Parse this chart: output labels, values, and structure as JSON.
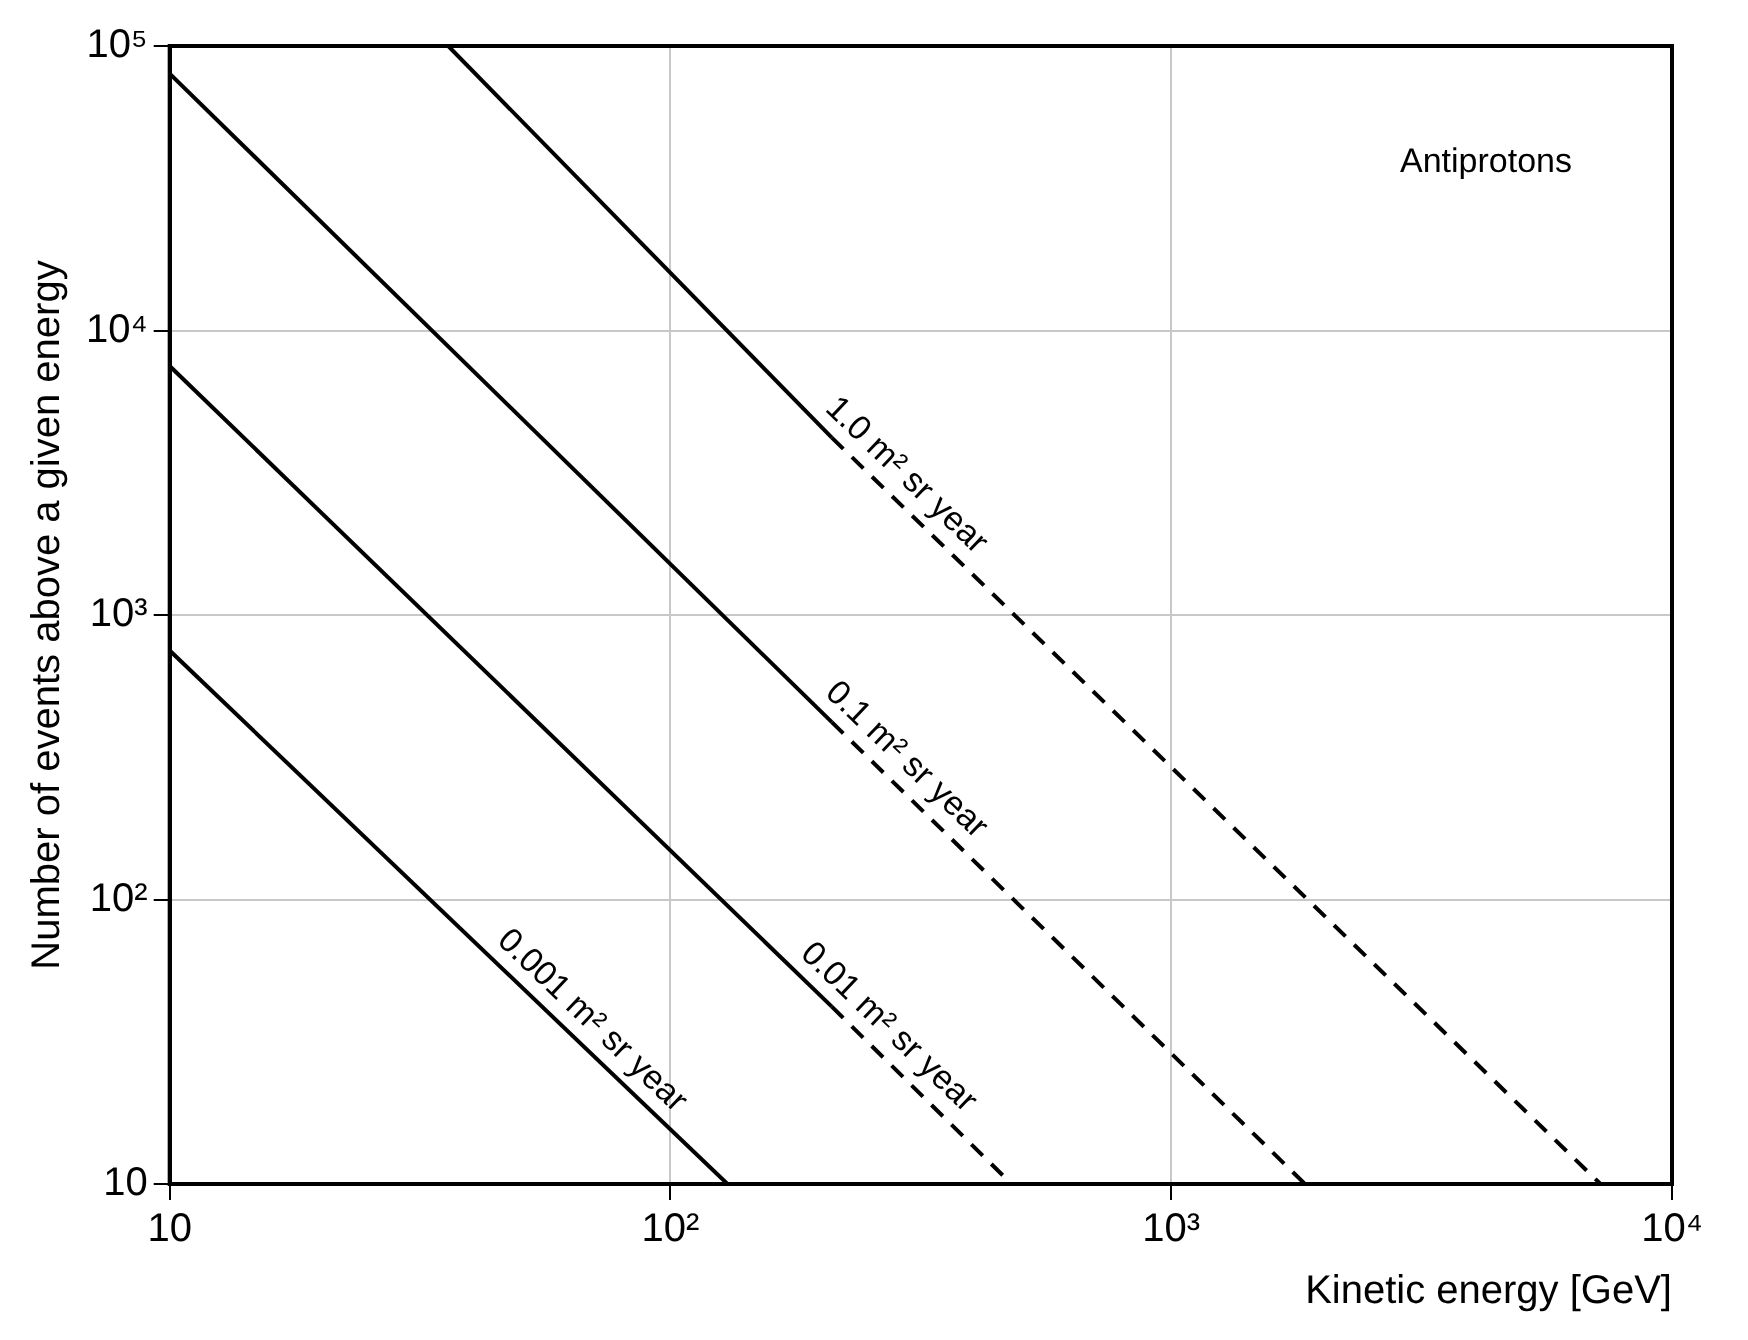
{
  "chart_data": {
    "type": "line",
    "xlabel": "Kinetic energy [GeV]",
    "ylabel": "Number of events above a given energy",
    "log": "xy",
    "grid": true,
    "legend": false,
    "marker": "none",
    "xlim": [
      10,
      10000
    ],
    "xticks": [
      10,
      {
        "value": 100,
        "label": "10²"
      },
      {
        "value": 1000,
        "label": "10³"
      },
      {
        "value": 10000,
        "label": "10⁴"
      }
    ],
    "ylim": [
      10,
      100000
    ],
    "yticks": [
      10,
      {
        "value": 100,
        "label": "10²"
      },
      {
        "value": 1000,
        "label": "10³"
      },
      {
        "value": 10000,
        "label": "10⁴"
      },
      {
        "value": 100000,
        "label": "10⁵"
      }
    ],
    "series": [
      {
        "color": "#000000",
        "line_style": "solid",
        "x": [
          10,
          130
        ],
        "values": [
          750,
          10
        ]
      },
      {
        "color": "#000000",
        "line_style": "solid",
        "x": [
          10,
          210
        ],
        "values": [
          7500,
          42
        ]
      },
      {
        "color": "#000000",
        "line_style": "solid",
        "x": [
          10,
          210
        ],
        "values": [
          80000,
          420
        ]
      },
      {
        "color": "#000000",
        "line_style": "solid",
        "x": [
          36,
          210
        ],
        "values": [
          100000,
          4200
        ]
      },
      {
        "color": "#000000",
        "line_style": "dashed",
        "x": [
          210,
          480
        ],
        "values": [
          42,
          10
        ]
      },
      {
        "color": "#000000",
        "line_style": "dashed",
        "x": [
          210,
          1850
        ],
        "values": [
          420,
          10
        ]
      },
      {
        "color": "#000000",
        "line_style": "dashed",
        "x": [
          210,
          7200
        ],
        "values": [
          4200,
          10
        ]
      }
    ],
    "annotations": [
      "0.001 m² sr year",
      "0.01 m² sr year",
      "0.1 m² sr year",
      "1.0 m² sr year",
      "Antiprotons"
    ]
  }
}
